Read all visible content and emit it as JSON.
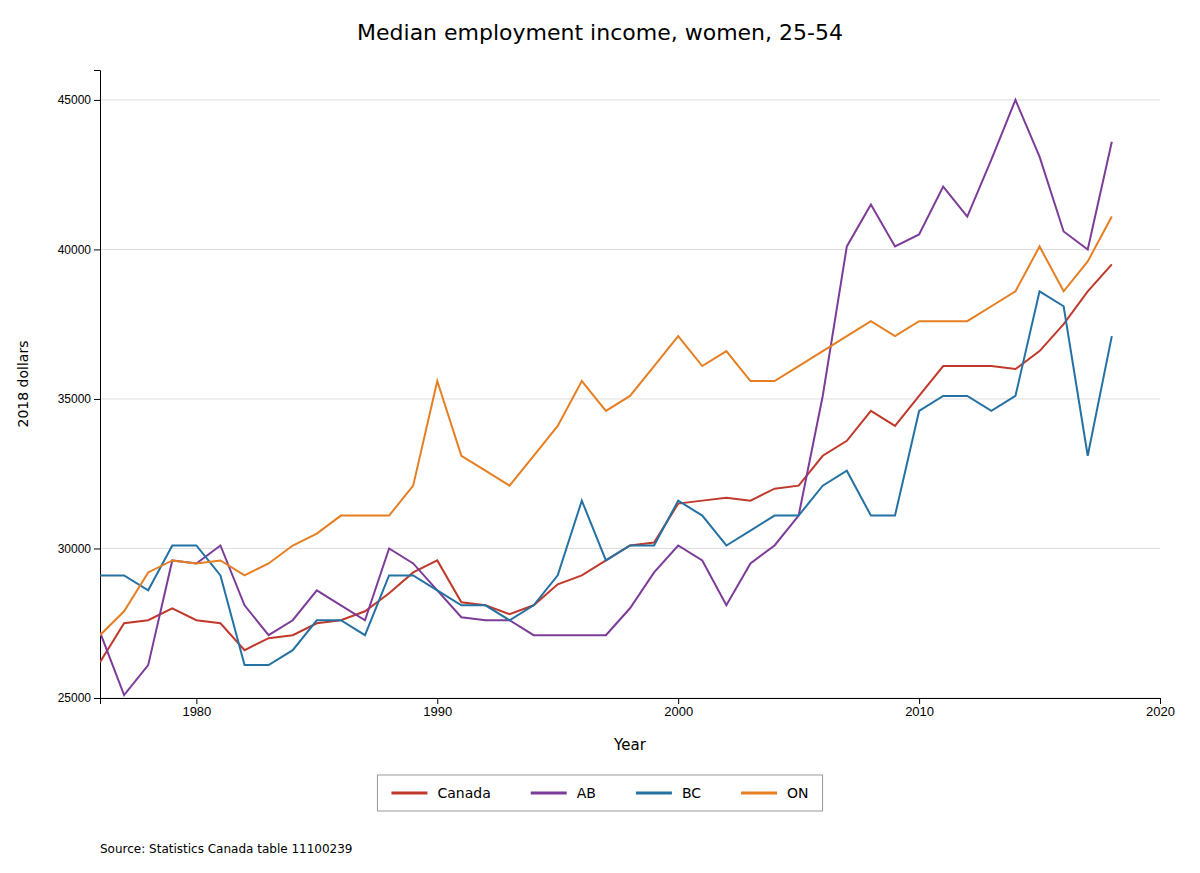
{
  "chart_data": {
    "type": "line",
    "title": "Median employment income, women, 25-54",
    "xlabel": "Year",
    "ylabel": "2018 dollars",
    "annotations": [
      "Source: Statistics Canada table 11100239"
    ],
    "x": [
      1976,
      1977,
      1978,
      1979,
      1980,
      1981,
      1982,
      1983,
      1984,
      1985,
      1986,
      1987,
      1988,
      1989,
      1990,
      1991,
      1992,
      1993,
      1994,
      1995,
      1996,
      1997,
      1998,
      1999,
      2000,
      2001,
      2002,
      2003,
      2004,
      2005,
      2006,
      2007,
      2008,
      2009,
      2010,
      2011,
      2012,
      2013,
      2014,
      2015,
      2016,
      2017,
      2018
    ],
    "xlim": [
      1976,
      2020
    ],
    "xticks": [
      1980,
      1990,
      2000,
      2010,
      2020
    ],
    "ylim": [
      25000,
      46000
    ],
    "yticks": [
      25000,
      30000,
      35000,
      40000,
      45000
    ],
    "grid": true,
    "legend": "bottom",
    "series": [
      {
        "name": "Canada",
        "color": "#c0392b",
        "values": [
          26200,
          27500,
          27600,
          28000,
          27600,
          27500,
          26600,
          27000,
          27100,
          27500,
          27600,
          27900,
          28500,
          29200,
          29600,
          28200,
          28100,
          27800,
          28100,
          28800,
          29100,
          29600,
          30100,
          30200,
          31500,
          31600,
          31700,
          31600,
          32000,
          32100,
          33100,
          33600,
          34600,
          34100,
          35100,
          36100,
          36100,
          36100,
          36000,
          36600,
          37500,
          38600,
          39500
        ]
      },
      {
        "name": "AB",
        "color": "#7d3c98",
        "values": [
          27200,
          25100,
          26100,
          29600,
          29500,
          30100,
          28100,
          27100,
          27600,
          28600,
          28100,
          27600,
          30000,
          29500,
          28600,
          27700,
          27600,
          27600,
          27100,
          27100,
          27100,
          27100,
          28000,
          29200,
          30100,
          29600,
          28100,
          29500,
          30100,
          31100,
          35100,
          40100,
          41500,
          40100,
          40500,
          42100,
          41100,
          43000,
          45000,
          43100,
          40600,
          40000,
          43600
        ]
      },
      {
        "name": "BC",
        "color": "#2471a3",
        "values": [
          29100,
          29100,
          28600,
          30100,
          30100,
          29100,
          26100,
          26100,
          26600,
          27600,
          27600,
          27100,
          29100,
          29100,
          28600,
          28100,
          28100,
          27600,
          28100,
          29100,
          31600,
          29600,
          30100,
          30100,
          31600,
          31100,
          30100,
          30600,
          31100,
          31100,
          32100,
          32600,
          31100,
          31100,
          34600,
          35100,
          35100,
          34600,
          35100,
          38600,
          38100,
          33100,
          37100
        ]
      },
      {
        "name": "ON",
        "color": "#e67e22",
        "values": [
          27100,
          27900,
          29200,
          29600,
          29500,
          29600,
          29100,
          29500,
          30100,
          30500,
          31100,
          31100,
          31100,
          32100,
          35600,
          33100,
          32600,
          32100,
          33100,
          34100,
          35600,
          34600,
          35100,
          36100,
          37100,
          36100,
          36600,
          35600,
          35600,
          36100,
          36600,
          37100,
          37600,
          37100,
          37600,
          37600,
          37600,
          38100,
          38600,
          40100,
          38600,
          39600,
          41100
        ]
      }
    ]
  }
}
